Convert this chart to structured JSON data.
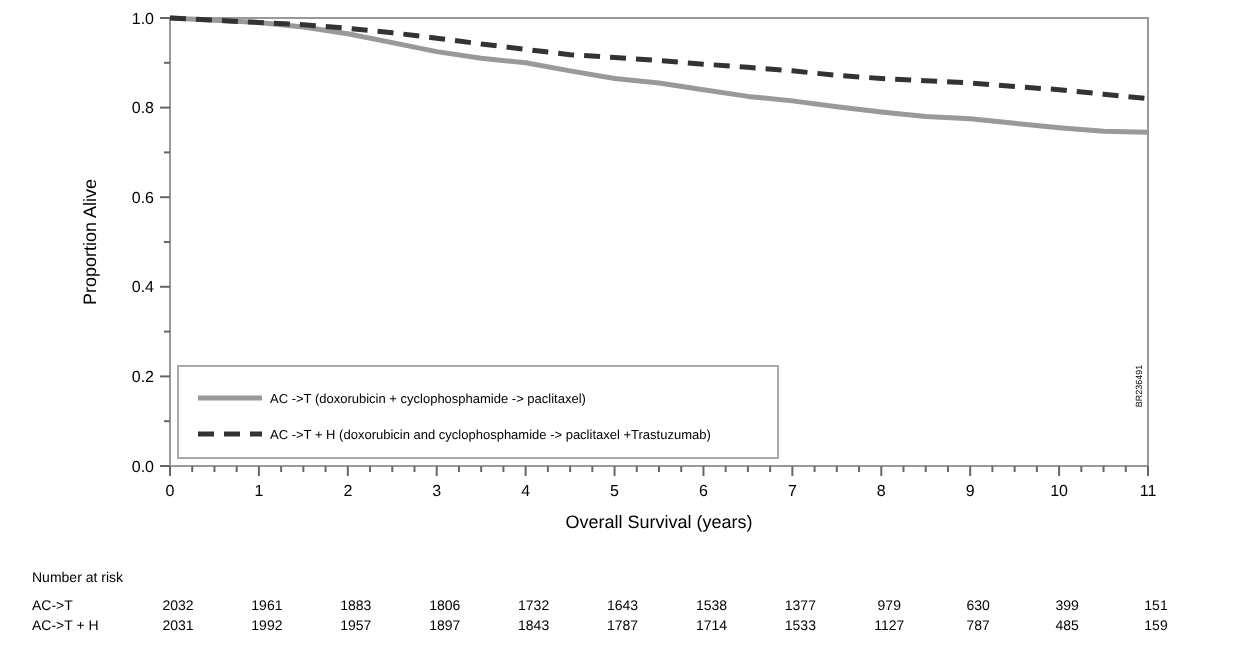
{
  "chart_data": {
    "type": "line",
    "xlabel": "Overall Survival (years)",
    "ylabel": "Proportion Alive",
    "series": [
      {
        "name": "AC ->T (doxorubicin + cyclophosphamide -> paclitaxel)",
        "color": "#999999",
        "line_style": "solid",
        "x": [
          0,
          0.5,
          1,
          1.5,
          2,
          2.5,
          3,
          3.5,
          4,
          4.5,
          5,
          5.5,
          6,
          6.5,
          7,
          7.5,
          8,
          8.5,
          9,
          9.5,
          10,
          10.5,
          11
        ],
        "values": [
          1.0,
          0.995,
          0.99,
          0.98,
          0.965,
          0.945,
          0.925,
          0.91,
          0.9,
          0.882,
          0.865,
          0.855,
          0.84,
          0.825,
          0.815,
          0.802,
          0.79,
          0.78,
          0.775,
          0.765,
          0.755,
          0.747,
          0.745
        ]
      },
      {
        "name": "AC ->T + H (doxorubicin and cyclophosphamide -> paclitaxel +Trastuzumab)",
        "color": "#333333",
        "line_style": "dashed",
        "x": [
          0,
          0.5,
          1,
          1.5,
          2,
          2.5,
          3,
          3.5,
          4,
          4.5,
          5,
          5.5,
          6,
          6.5,
          7,
          7.5,
          8,
          8.5,
          9,
          9.5,
          10,
          10.5,
          11
        ],
        "values": [
          1.0,
          0.995,
          0.99,
          0.985,
          0.977,
          0.967,
          0.955,
          0.942,
          0.93,
          0.918,
          0.912,
          0.905,
          0.897,
          0.89,
          0.882,
          0.872,
          0.865,
          0.86,
          0.855,
          0.847,
          0.84,
          0.83,
          0.82
        ]
      }
    ],
    "xlim": [
      0,
      11
    ],
    "ylim": [
      0,
      1
    ],
    "xticks": [
      0,
      {
        "value": 0.25,
        "label": null
      },
      {
        "value": 0.5,
        "label": null
      },
      {
        "value": 0.75,
        "label": null
      },
      1,
      {
        "value": 1.25,
        "label": null
      },
      {
        "value": 1.5,
        "label": null
      },
      {
        "value": 1.75,
        "label": null
      },
      2,
      {
        "value": 2.25,
        "label": null
      },
      {
        "value": 2.5,
        "label": null
      },
      {
        "value": 2.75,
        "label": null
      },
      3,
      {
        "value": 3.25,
        "label": null
      },
      {
        "value": 3.5,
        "label": null
      },
      {
        "value": 3.75,
        "label": null
      },
      4,
      {
        "value": 4.25,
        "label": null
      },
      {
        "value": 4.5,
        "label": null
      },
      {
        "value": 4.75,
        "label": null
      },
      5,
      {
        "value": 5.25,
        "label": null
      },
      {
        "value": 5.5,
        "label": null
      },
      {
        "value": 5.75,
        "label": null
      },
      6,
      {
        "value": 6.25,
        "label": null
      },
      {
        "value": 6.5,
        "label": null
      },
      {
        "value": 6.75,
        "label": null
      },
      7,
      {
        "value": 7.25,
        "label": null
      },
      {
        "value": 7.5,
        "label": null
      },
      {
        "value": 7.75,
        "label": null
      },
      8,
      {
        "value": 8.25,
        "label": null
      },
      {
        "value": 8.5,
        "label": null
      },
      {
        "value": 8.75,
        "label": null
      },
      9,
      {
        "value": 9.25,
        "label": null
      },
      {
        "value": 9.5,
        "label": null
      },
      {
        "value": 9.75,
        "label": null
      },
      10,
      {
        "value": 10.25,
        "label": null
      },
      {
        "value": 10.5,
        "label": null
      },
      {
        "value": 10.75,
        "label": null
      },
      11
    ],
    "yticks": [
      {
        "value": 0,
        "label": "0.0"
      },
      {
        "value": 0.1,
        "label": null
      },
      0.2,
      {
        "value": 0.3,
        "label": null
      },
      0.4,
      {
        "value": 0.5,
        "label": null
      },
      0.6,
      {
        "value": 0.7,
        "label": null
      },
      0.8,
      {
        "value": 0.9,
        "label": null
      },
      {
        "value": 1,
        "label": "1.0"
      }
    ],
    "grid": false,
    "legend": "bottom left",
    "annotations": [
      "Number at risk",
      "AC->T",
      "2032",
      "1961",
      "1883",
      "1806",
      "1732",
      "1643",
      "1538",
      "1377",
      "979",
      "630",
      "399",
      "151",
      "AC->T + H",
      "2031",
      "1992",
      "1957",
      "1897",
      "1843",
      "1787",
      "1714",
      "1533",
      "1127",
      "787",
      "485",
      "159",
      "BR236491"
    ]
  }
}
